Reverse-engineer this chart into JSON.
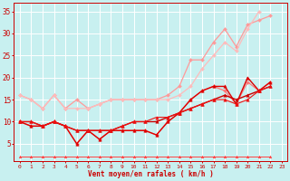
{
  "xlabel": "Vent moyen/en rafales ( km/h )",
  "bg_color": "#c8f0f0",
  "grid_color": "#ffffff",
  "x_values": [
    0,
    1,
    2,
    3,
    4,
    5,
    6,
    7,
    8,
    9,
    10,
    11,
    12,
    13,
    14,
    15,
    16,
    17,
    18,
    19,
    20,
    21,
    22,
    23
  ],
  "series": [
    {
      "color": "#ff9999",
      "lw": 0.9,
      "marker": "D",
      "ms": 2.0,
      "y": [
        16,
        15,
        13,
        16,
        13,
        15,
        13,
        14,
        15,
        15,
        15,
        15,
        15,
        16,
        18,
        24,
        24,
        28,
        31,
        27,
        32,
        33,
        34,
        null
      ]
    },
    {
      "color": "#ffbbbb",
      "lw": 0.9,
      "marker": "D",
      "ms": 2.0,
      "y": [
        16,
        15,
        13,
        16,
        13,
        13,
        13,
        14,
        15,
        15,
        15,
        15,
        15,
        15,
        16,
        18,
        22,
        25,
        28,
        26,
        31,
        35,
        null,
        null
      ]
    },
    {
      "color": "#ff7777",
      "lw": 0.9,
      "marker": "D",
      "ms": 2.0,
      "y": [
        10,
        9,
        9,
        10,
        9,
        5,
        8,
        6,
        8,
        8,
        8,
        8,
        7,
        10,
        12,
        15,
        17,
        18,
        17,
        14,
        19,
        17,
        19,
        null
      ]
    },
    {
      "color": "#dd0000",
      "lw": 1.0,
      "marker": "^",
      "ms": 2.5,
      "y": [
        10,
        9,
        9,
        10,
        9,
        5,
        8,
        6,
        8,
        8,
        8,
        8,
        7,
        10,
        12,
        15,
        17,
        18,
        18,
        14,
        20,
        17,
        19,
        null
      ]
    },
    {
      "color": "#cc0000",
      "lw": 1.0,
      "marker": "^",
      "ms": 2.5,
      "y": [
        10,
        10,
        9,
        10,
        9,
        8,
        8,
        8,
        8,
        9,
        10,
        10,
        10,
        11,
        12,
        13,
        14,
        15,
        16,
        15,
        16,
        17,
        18,
        null
      ]
    },
    {
      "color": "#ee1111",
      "lw": 0.8,
      "marker": "^",
      "ms": 2.5,
      "y": [
        10,
        10,
        9,
        10,
        9,
        8,
        8,
        8,
        8,
        9,
        10,
        10,
        11,
        11,
        12,
        13,
        14,
        15,
        15,
        14,
        15,
        17,
        18,
        null
      ]
    },
    {
      "color": "#ff4444",
      "lw": 0.7,
      "marker": "^",
      "ms": 2.0,
      "y": [
        2,
        2,
        2,
        2,
        2,
        2,
        2,
        2,
        2,
        2,
        2,
        2,
        2,
        2,
        2,
        2,
        2,
        2,
        2,
        2,
        2,
        2,
        2,
        null
      ]
    }
  ],
  "xlim": [
    -0.5,
    23.5
  ],
  "ylim": [
    1,
    37
  ],
  "yticks": [
    5,
    10,
    15,
    20,
    25,
    30,
    35
  ],
  "xticks": [
    0,
    1,
    2,
    3,
    4,
    5,
    6,
    7,
    8,
    9,
    10,
    11,
    12,
    13,
    14,
    15,
    16,
    17,
    18,
    19,
    20,
    21,
    22,
    23
  ]
}
